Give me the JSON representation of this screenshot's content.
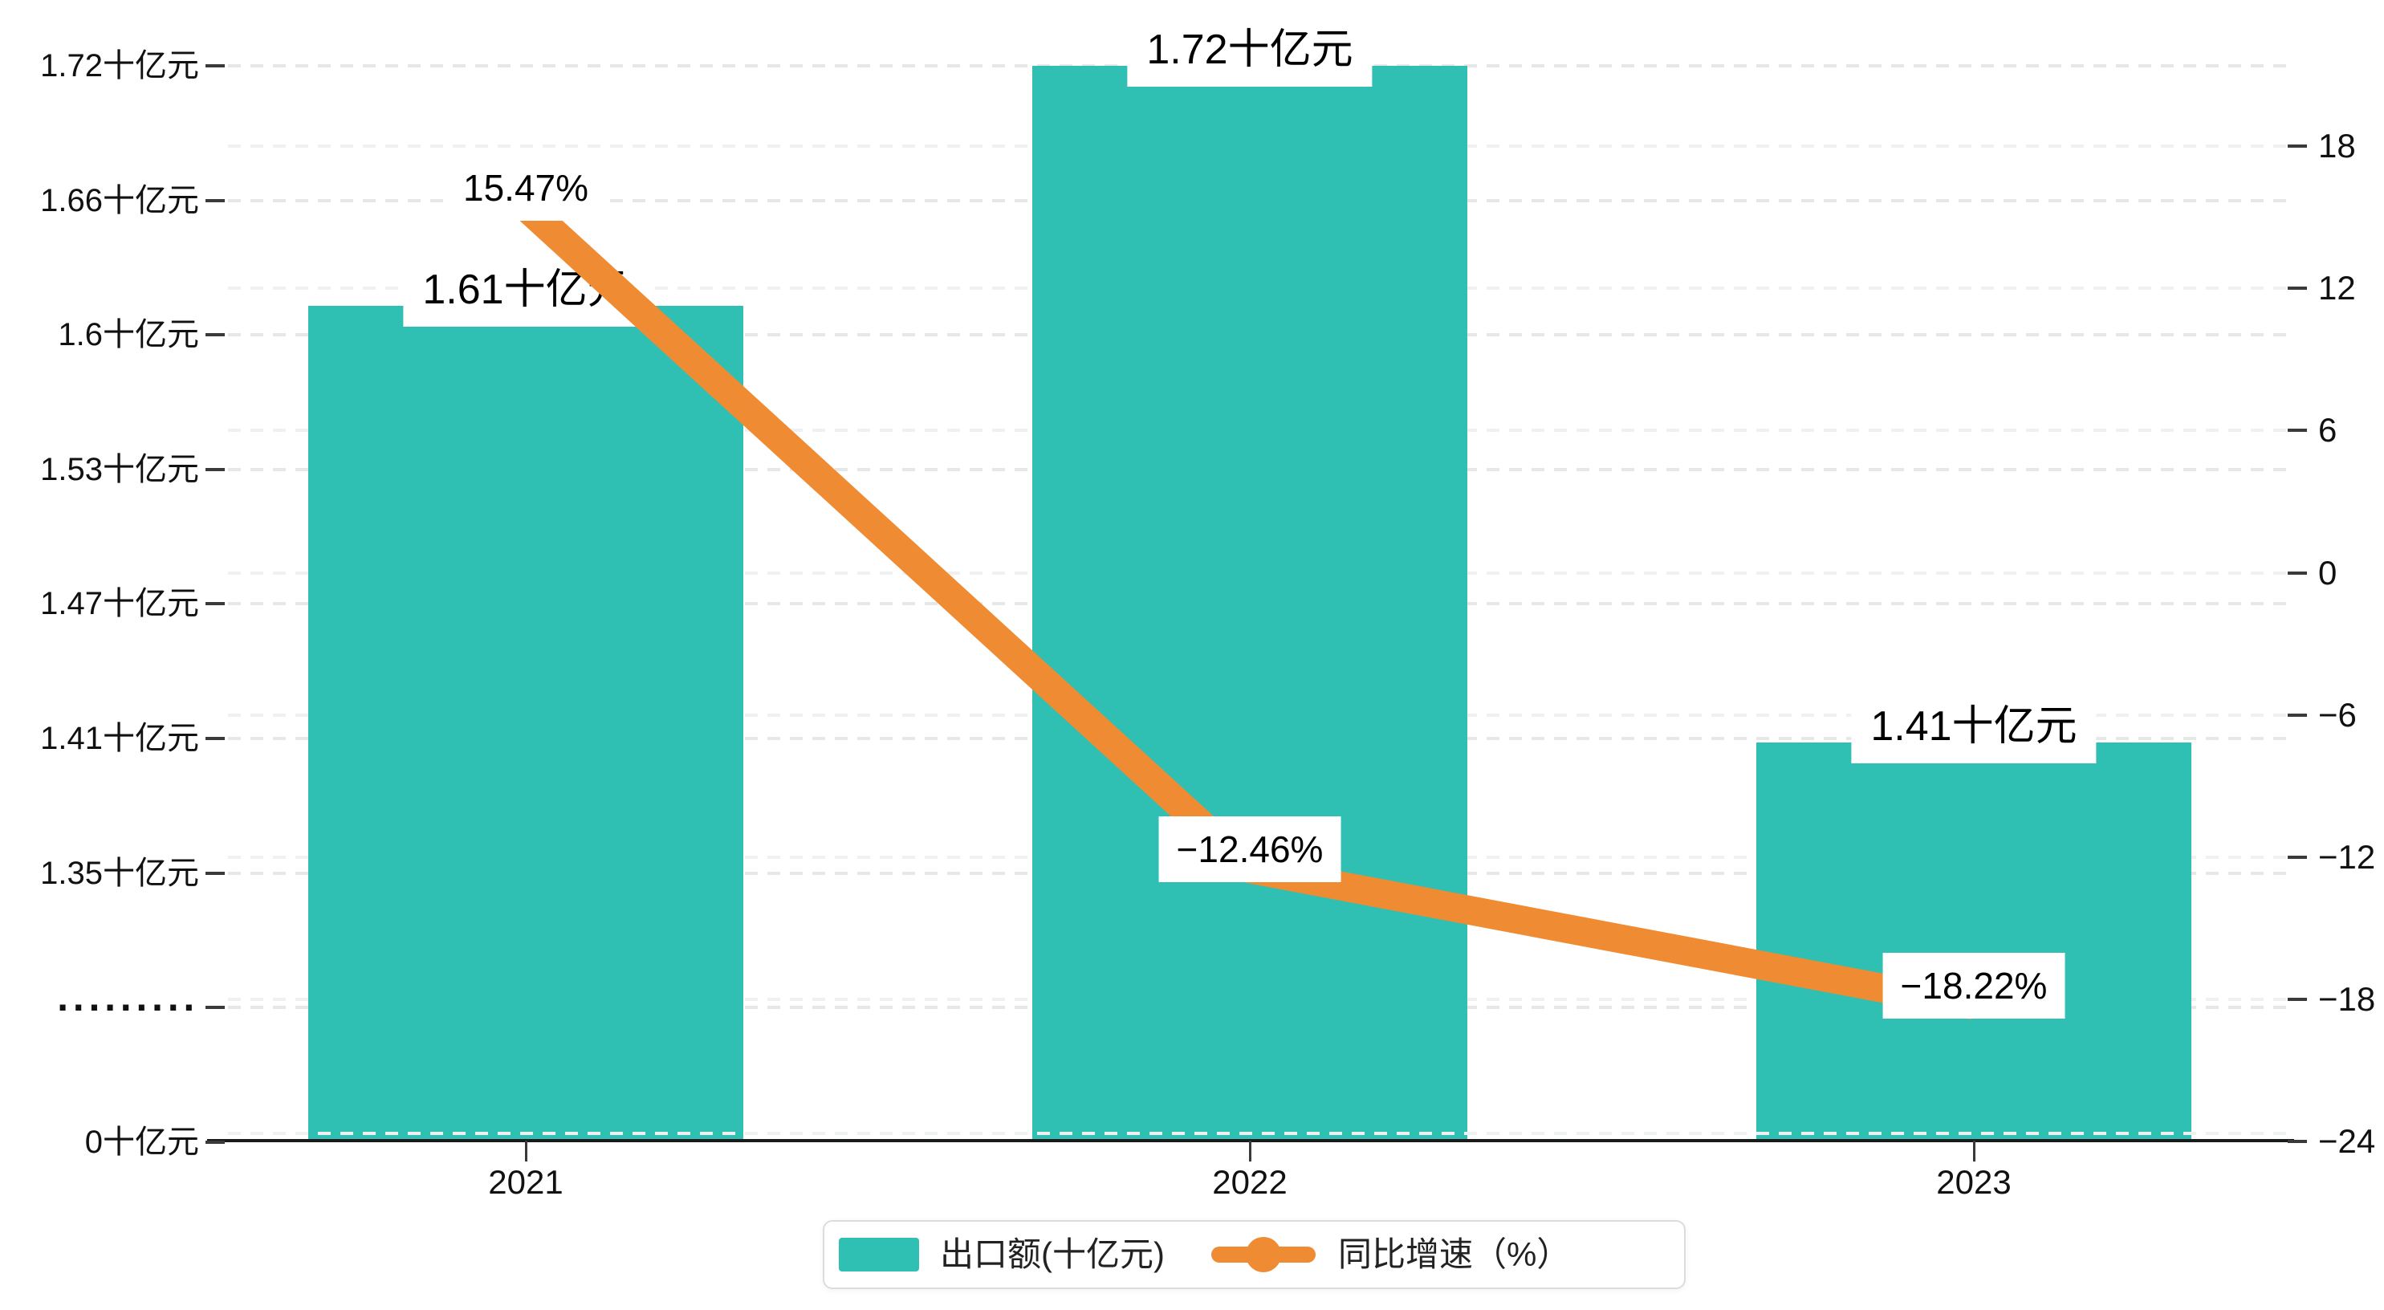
{
  "chart_data": {
    "type": "bar",
    "subtype": "bar-line-combo-dual-axis",
    "categories": [
      "2021",
      "2022",
      "2023"
    ],
    "series": [
      {
        "name": "出口额(十亿元)",
        "type": "bar",
        "yaxis": "left",
        "values": [
          1.61,
          1.72,
          1.41
        ],
        "data_labels": [
          "1.61十亿元",
          "1.72十亿元",
          "1.41十亿元"
        ]
      },
      {
        "name": "同比增速（%）",
        "type": "line",
        "yaxis": "right",
        "values": [
          15.47,
          -12.46,
          -18.22
        ],
        "data_labels": [
          "15.47%",
          "−12.46%",
          "−18.22%"
        ]
      }
    ],
    "left_axis": {
      "unit": "十亿元",
      "tick_labels": [
        "1.72十亿元",
        "1.66十亿元",
        "1.6十亿元",
        "1.53十亿元",
        "1.47十亿元",
        "1.41十亿元",
        "1.35十亿元",
        "·········",
        "0十亿元"
      ],
      "axis_break": true
    },
    "right_axis": {
      "unit": "%",
      "tick_labels": [
        "18",
        "12",
        "6",
        "0",
        "−6",
        "−12",
        "−18",
        "−24"
      ],
      "range": [
        -24,
        18
      ]
    },
    "grid": {
      "horizontal_dashed": true
    },
    "legend": {
      "position": "bottom-center",
      "items": [
        "出口额(十亿元)",
        "同比增速（%）"
      ]
    }
  },
  "colors": {
    "bar": "#2fbfb3",
    "line": "#ef8c33",
    "grid_major": "#e7e7e7",
    "grid_minor": "#f0f0f0",
    "axis_line": "#1a1a1a",
    "text": "#111111",
    "label_background": "#ffffff",
    "legend_border": "#dcdcdc",
    "background": "#ffffff"
  }
}
